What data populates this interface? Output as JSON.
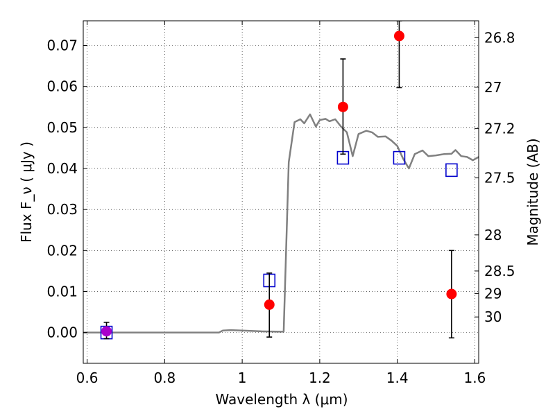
{
  "chart_data": {
    "type": "scatter",
    "xlabel": "Wavelength  λ (μm)",
    "ylabel_left": "Flux  F_ν  ( μJy )",
    "ylabel_right": "Magnitude (AB)",
    "xlim": [
      0.59,
      1.61
    ],
    "ylim": [
      -0.0075,
      0.076
    ],
    "x_ticks": [
      0.6,
      0.8,
      1.0,
      1.2,
      1.4,
      1.6
    ],
    "x_tick_labels": [
      "0.6",
      "0.8",
      "1",
      "1.2",
      "1.4",
      "1.6"
    ],
    "y_ticks": [
      0.0,
      0.01,
      0.02,
      0.03,
      0.04,
      0.05,
      0.06,
      0.07
    ],
    "y_tick_labels": [
      "0.00",
      "0.01",
      "0.02",
      "0.03",
      "0.04",
      "0.05",
      "0.06",
      "0.07"
    ],
    "right_ticks": [
      {
        "label": "26.8",
        "flux": 0.0719
      },
      {
        "label": "27",
        "flux": 0.0598
      },
      {
        "label": "27.2",
        "flux": 0.0497
      },
      {
        "label": "27.5",
        "flux": 0.0377
      },
      {
        "label": "28",
        "flux": 0.0238
      },
      {
        "label": "28.5",
        "flux": 0.015
      },
      {
        "label": "29",
        "flux": 0.0095
      },
      {
        "label": "30",
        "flux": 0.0038
      }
    ],
    "grid": true,
    "colors": {
      "model": "#808080",
      "observed": "#ff0000",
      "synthetic": "#0000cc",
      "overlap": "#aa00cc",
      "errorbar": "#000000"
    },
    "model_sed": {
      "x": [
        0.59,
        0.94,
        0.95,
        0.97,
        1.0,
        1.05,
        1.1,
        1.107,
        1.12,
        1.135,
        1.15,
        1.16,
        1.175,
        1.19,
        1.2,
        1.215,
        1.225,
        1.24,
        1.255,
        1.27,
        1.285,
        1.3,
        1.32,
        1.335,
        1.35,
        1.37,
        1.385,
        1.4,
        1.415,
        1.43,
        1.445,
        1.465,
        1.48,
        1.5,
        1.52,
        1.54,
        1.55,
        1.565,
        1.58,
        1.595,
        1.61
      ],
      "y": [
        0.0,
        0.0,
        0.0005,
        0.0006,
        0.0005,
        0.0003,
        0.0002,
        0.0002,
        0.0415,
        0.0513,
        0.052,
        0.051,
        0.0532,
        0.0502,
        0.0518,
        0.0521,
        0.0515,
        0.052,
        0.0502,
        0.0488,
        0.043,
        0.0484,
        0.0492,
        0.0488,
        0.0477,
        0.0478,
        0.0468,
        0.0455,
        0.0424,
        0.04,
        0.0435,
        0.0444,
        0.043,
        0.0432,
        0.0435,
        0.0436,
        0.0445,
        0.043,
        0.0428,
        0.042,
        0.0428
      ]
    },
    "synthetic_points": {
      "x": [
        0.65,
        1.07,
        1.26,
        1.405,
        1.54
      ],
      "y": [
        0.0,
        0.0127,
        0.0426,
        0.0426,
        0.0396
      ]
    },
    "observed_points": [
      {
        "x": 0.65,
        "y": 0.0003,
        "err_low": 0.0018,
        "err_high": 0.0022
      },
      {
        "x": 1.07,
        "y": 0.0068,
        "err_low": 0.0079,
        "err_high": 0.0077
      },
      {
        "x": 1.26,
        "y": 0.055,
        "err_low": 0.0115,
        "err_high": 0.0117
      },
      {
        "x": 1.405,
        "y": 0.0723,
        "err_low": 0.0126,
        "err_high": 0.0037
      },
      {
        "x": 1.54,
        "y": 0.0094,
        "err_low": 0.0107,
        "err_high": 0.0106
      }
    ]
  }
}
